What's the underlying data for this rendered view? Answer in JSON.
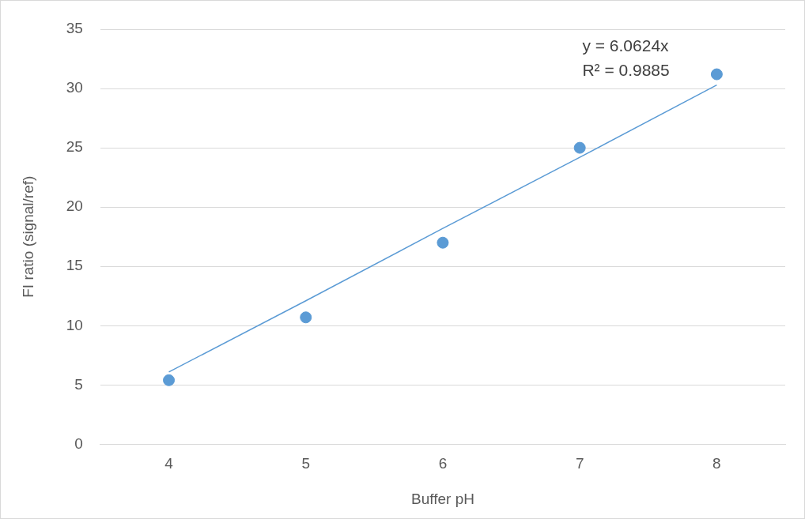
{
  "chart_data": {
    "type": "scatter",
    "xlabel": "Buffer pH",
    "ylabel": "FI ratio (signal/ref)",
    "categories": [
      "4",
      "5",
      "6",
      "7",
      "8"
    ],
    "series": [
      {
        "type": "scatter",
        "color": "#5b9bd5",
        "marker": "circle",
        "values": [
          5.4,
          10.7,
          17.0,
          25.0,
          31.2
        ]
      },
      {
        "type": "line",
        "color": "#5b9bd5",
        "marker": "none",
        "line_style": "solid",
        "values": [
          6.1,
          12.1,
          18.2,
          24.2,
          30.3
        ]
      }
    ],
    "ylim": [
      0,
      35
    ],
    "yticks": [
      0,
      5,
      10,
      15,
      20,
      25,
      30,
      35
    ],
    "grid": "y",
    "legend": false,
    "annotations": [
      "y = 6.0624x",
      "R² = 0.9885"
    ]
  }
}
